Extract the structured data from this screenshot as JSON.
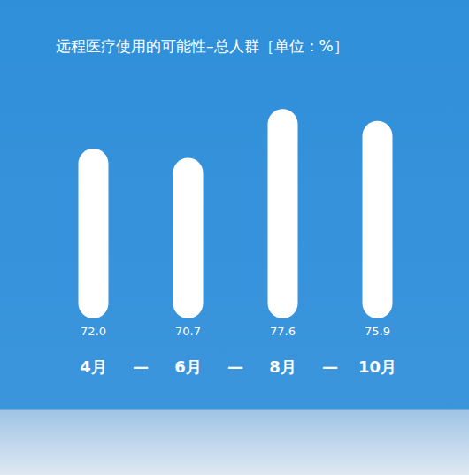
{
  "chart_data": {
    "type": "bar",
    "title": "远程医疗使用的可能性–总人群［单位：%］",
    "categories": [
      "4月",
      "6月",
      "8月",
      "10月"
    ],
    "values": [
      72.0,
      70.7,
      77.6,
      75.9
    ],
    "value_labels": [
      "72.0",
      "70.7",
      "77.6",
      "75.9"
    ],
    "annotations": [
      "—",
      "—",
      "—"
    ],
    "color": "#ffffff",
    "ylim": [
      48,
      80
    ],
    "yticks": [
      48,
      56,
      64,
      72,
      80
    ],
    "grid": false,
    "data_labels": true,
    "tick_labels": "x"
  }
}
